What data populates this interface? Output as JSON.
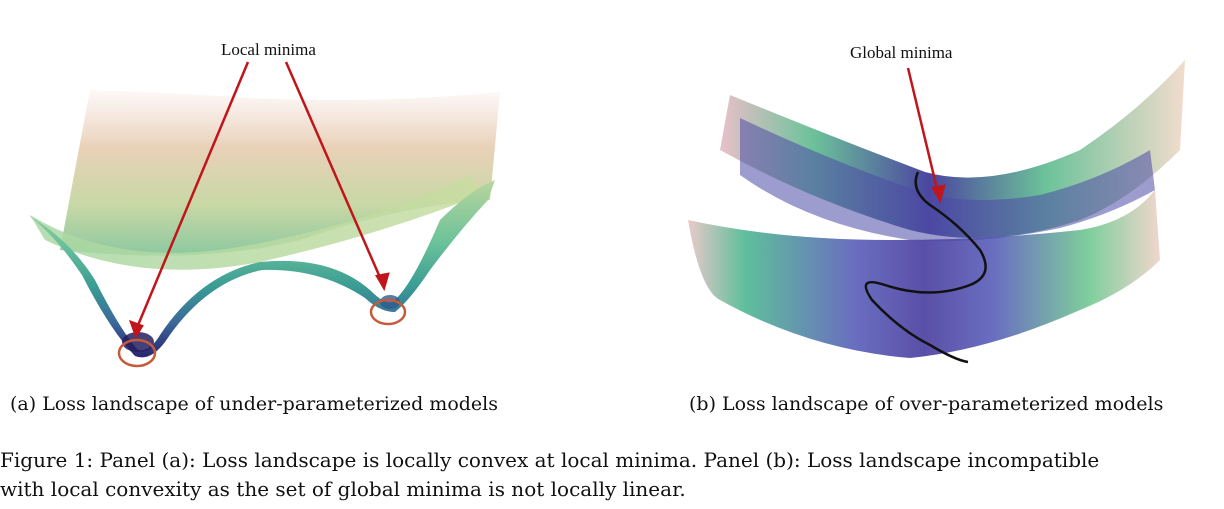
{
  "panel_a": {
    "annotation": "Local minima",
    "subcaption": "(a) Loss landscape of under-parameterized models"
  },
  "panel_b": {
    "annotation": "Global minima",
    "subcaption": "(b) Loss landscape of over-parameterized models"
  },
  "figure_caption": {
    "line1": "Figure 1: Panel (a): Loss landscape is locally convex at local minima. Panel (b): Loss landscape incompatible",
    "line2": "with local convexity as the set of global minima is not locally linear."
  },
  "colors": {
    "arrow": "#c0151b",
    "circle": "#c65a3a",
    "surface_low": "#2a2470",
    "surface_mid": "#3aa690",
    "surface_high": "#f2d9cf"
  }
}
